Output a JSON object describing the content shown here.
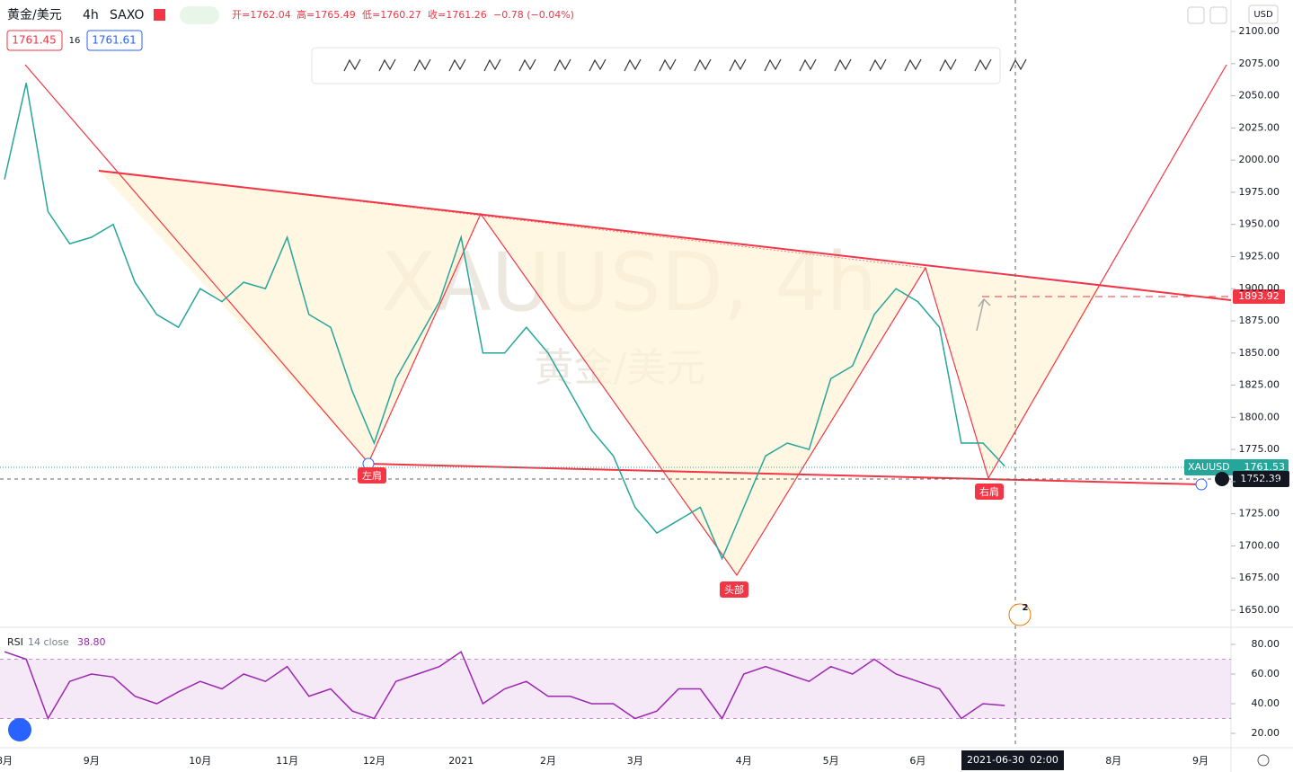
{
  "header": {
    "symbol": "黄金/美元",
    "interval": "4h",
    "exchange": "SAXO",
    "open": "开=1762.04",
    "high": "高=1765.49",
    "low": "低=1760.27",
    "close": "收=1761.26",
    "change": "−0.78 (−0.04%)",
    "sell": "1761.45",
    "spread": "16",
    "buy": "1761.61",
    "currency": "USD"
  },
  "watermark": {
    "title": "XAUUSD, 4h",
    "subtitle": "黄金/美元"
  },
  "annotations": {
    "left_shoulder": "左肩",
    "head": "头部",
    "right_shoulder": "右肩",
    "events": "2"
  },
  "price_labels": {
    "target": "1893.92",
    "crosshair": "1752.39",
    "symbol": "XAUUSD",
    "last": "1761.53"
  },
  "crosshair_time": {
    "date": "2021-06-30",
    "time": "02:00"
  },
  "chart_data": [
    {
      "type": "line",
      "categories": [
        "8月",
        null,
        null,
        null,
        "9月",
        null,
        null,
        null,
        null,
        "10月",
        null,
        null,
        null,
        "11月",
        null,
        null,
        null,
        "12月",
        null,
        null,
        null,
        "2021",
        null,
        null,
        null,
        "2月",
        null,
        null,
        null,
        "3月",
        null,
        null,
        null,
        null,
        "4月",
        null,
        null,
        null,
        "5月",
        null,
        null,
        null,
        "6月",
        null,
        null,
        null,
        null,
        null,
        null,
        null,
        null,
        "8月",
        null,
        null,
        null,
        "9月",
        null
      ],
      "series": [
        {
          "name": "XAUUSD",
          "color": "#26a69a",
          "values": [
            1985,
            2060,
            1960,
            1935,
            1940,
            1950,
            1905,
            1880,
            1870,
            1900,
            1890,
            1905,
            1900,
            1940,
            1880,
            1870,
            1820,
            1780,
            1830,
            1860,
            1890,
            1940,
            1850,
            1850,
            1870,
            1850,
            1820,
            1790,
            1770,
            1730,
            1710,
            1720,
            1730,
            1690,
            1730,
            1770,
            1780,
            1775,
            1830,
            1840,
            1880,
            1900,
            1890,
            1870,
            1780,
            1780,
            1762,
            null,
            null,
            null,
            null,
            null,
            null,
            null,
            null,
            null,
            null
          ]
        }
      ],
      "ylim": [
        1637.4,
        2124.5
      ],
      "yticks": [
        {
          "value": 1650,
          "label": "1650.00"
        },
        {
          "value": 1675,
          "label": "1675.00"
        },
        {
          "value": 1700,
          "label": "1700.00"
        },
        {
          "value": 1725,
          "label": "1725.00"
        },
        {
          "value": 1750,
          "label": "1750.00"
        },
        {
          "value": 1775,
          "label": "1775.00"
        },
        {
          "value": 1800,
          "label": "1800.00"
        },
        {
          "value": 1825,
          "label": "1825.00"
        },
        {
          "value": 1850,
          "label": "1850.00"
        },
        {
          "value": 1875,
          "label": "1875.00"
        },
        {
          "value": 1900,
          "label": "1900.00"
        },
        {
          "value": 1925,
          "label": "1925.00"
        },
        {
          "value": 1950,
          "label": "1950.00"
        },
        {
          "value": 1975,
          "label": "1975.00"
        },
        {
          "value": 2000,
          "label": "2000.00"
        },
        {
          "value": 2025,
          "label": "2025.00"
        },
        {
          "value": 2050,
          "label": "2050.00"
        },
        {
          "value": 2075,
          "label": "2075.00"
        },
        {
          "value": 2100,
          "label": "2100.00"
        }
      ],
      "grid": false
    },
    {
      "type": "line",
      "params": "14 close",
      "last": "38.80",
      "series": [
        {
          "name": "RSI",
          "color": "#9c27b0",
          "values": [
            75,
            70,
            30,
            55,
            60,
            58,
            45,
            40,
            48,
            55,
            50,
            60,
            55,
            65,
            45,
            50,
            35,
            30,
            55,
            60,
            65,
            75,
            40,
            50,
            55,
            45,
            45,
            40,
            40,
            30,
            35,
            50,
            50,
            30,
            60,
            65,
            60,
            55,
            65,
            60,
            70,
            60,
            55,
            50,
            30,
            40,
            38.8,
            null,
            null,
            null,
            null,
            null,
            null,
            null,
            null,
            null,
            null
          ]
        }
      ],
      "ylim": [
        11.5,
        90.3
      ],
      "yticks": [
        {
          "value": 20,
          "label": "20.00"
        },
        {
          "value": 40,
          "label": "40.00"
        },
        {
          "value": 60,
          "label": "60.00"
        },
        {
          "value": 80,
          "label": "80.00"
        }
      ],
      "bands": [
        30,
        70
      ]
    }
  ]
}
